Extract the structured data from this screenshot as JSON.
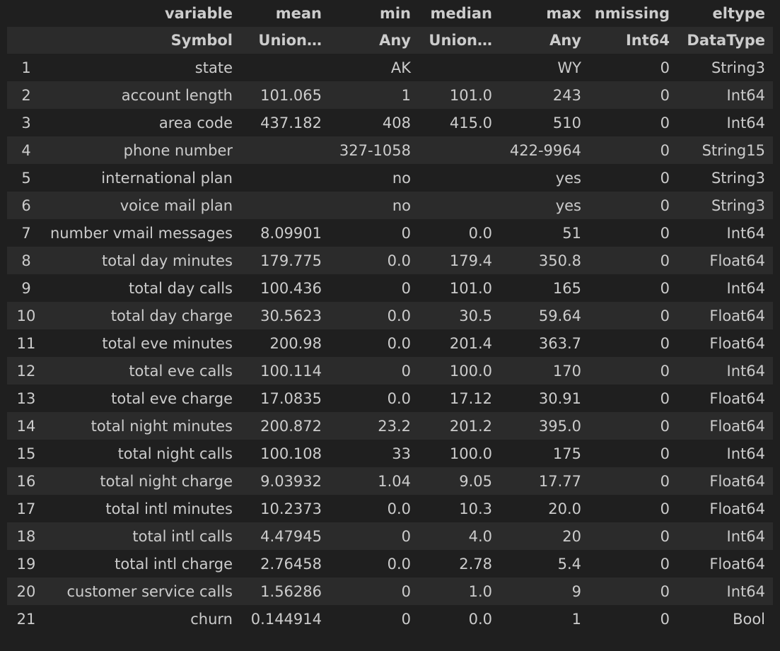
{
  "table": {
    "columns": [
      "variable",
      "mean",
      "min",
      "median",
      "max",
      "nmissing",
      "eltype"
    ],
    "types": [
      "Symbol",
      "Union…",
      "Any",
      "Union…",
      "Any",
      "Int64",
      "DataType"
    ],
    "rows": [
      {
        "idx": "1",
        "variable": "state",
        "mean": "",
        "min": "AK",
        "median": "",
        "max": "WY",
        "nmissing": "0",
        "eltype": "String3"
      },
      {
        "idx": "2",
        "variable": "account length",
        "mean": "101.065",
        "min": "1",
        "median": "101.0",
        "max": "243",
        "nmissing": "0",
        "eltype": "Int64"
      },
      {
        "idx": "3",
        "variable": "area code",
        "mean": "437.182",
        "min": "408",
        "median": "415.0",
        "max": "510",
        "nmissing": "0",
        "eltype": "Int64"
      },
      {
        "idx": "4",
        "variable": "phone number",
        "mean": "",
        "min": "327-1058",
        "median": "",
        "max": "422-9964",
        "nmissing": "0",
        "eltype": "String15"
      },
      {
        "idx": "5",
        "variable": "international plan",
        "mean": "",
        "min": "no",
        "median": "",
        "max": "yes",
        "nmissing": "0",
        "eltype": "String3"
      },
      {
        "idx": "6",
        "variable": "voice mail plan",
        "mean": "",
        "min": "no",
        "median": "",
        "max": "yes",
        "nmissing": "0",
        "eltype": "String3"
      },
      {
        "idx": "7",
        "variable": "number vmail messages",
        "mean": "8.09901",
        "min": "0",
        "median": "0.0",
        "max": "51",
        "nmissing": "0",
        "eltype": "Int64"
      },
      {
        "idx": "8",
        "variable": "total day minutes",
        "mean": "179.775",
        "min": "0.0",
        "median": "179.4",
        "max": "350.8",
        "nmissing": "0",
        "eltype": "Float64"
      },
      {
        "idx": "9",
        "variable": "total day calls",
        "mean": "100.436",
        "min": "0",
        "median": "101.0",
        "max": "165",
        "nmissing": "0",
        "eltype": "Int64"
      },
      {
        "idx": "10",
        "variable": "total day charge",
        "mean": "30.5623",
        "min": "0.0",
        "median": "30.5",
        "max": "59.64",
        "nmissing": "0",
        "eltype": "Float64"
      },
      {
        "idx": "11",
        "variable": "total eve minutes",
        "mean": "200.98",
        "min": "0.0",
        "median": "201.4",
        "max": "363.7",
        "nmissing": "0",
        "eltype": "Float64"
      },
      {
        "idx": "12",
        "variable": "total eve calls",
        "mean": "100.114",
        "min": "0",
        "median": "100.0",
        "max": "170",
        "nmissing": "0",
        "eltype": "Int64"
      },
      {
        "idx": "13",
        "variable": "total eve charge",
        "mean": "17.0835",
        "min": "0.0",
        "median": "17.12",
        "max": "30.91",
        "nmissing": "0",
        "eltype": "Float64"
      },
      {
        "idx": "14",
        "variable": "total night minutes",
        "mean": "200.872",
        "min": "23.2",
        "median": "201.2",
        "max": "395.0",
        "nmissing": "0",
        "eltype": "Float64"
      },
      {
        "idx": "15",
        "variable": "total night calls",
        "mean": "100.108",
        "min": "33",
        "median": "100.0",
        "max": "175",
        "nmissing": "0",
        "eltype": "Int64"
      },
      {
        "idx": "16",
        "variable": "total night charge",
        "mean": "9.03932",
        "min": "1.04",
        "median": "9.05",
        "max": "17.77",
        "nmissing": "0",
        "eltype": "Float64"
      },
      {
        "idx": "17",
        "variable": "total intl minutes",
        "mean": "10.2373",
        "min": "0.0",
        "median": "10.3",
        "max": "20.0",
        "nmissing": "0",
        "eltype": "Float64"
      },
      {
        "idx": "18",
        "variable": "total intl calls",
        "mean": "4.47945",
        "min": "0",
        "median": "4.0",
        "max": "20",
        "nmissing": "0",
        "eltype": "Int64"
      },
      {
        "idx": "19",
        "variable": "total intl charge",
        "mean": "2.76458",
        "min": "0.0",
        "median": "2.78",
        "max": "5.4",
        "nmissing": "0",
        "eltype": "Float64"
      },
      {
        "idx": "20",
        "variable": "customer service calls",
        "mean": "1.56286",
        "min": "0",
        "median": "1.0",
        "max": "9",
        "nmissing": "0",
        "eltype": "Int64"
      },
      {
        "idx": "21",
        "variable": "churn",
        "mean": "0.144914",
        "min": "0",
        "median": "0.0",
        "max": "1",
        "nmissing": "0",
        "eltype": "Bool"
      }
    ]
  },
  "colors": {
    "background": "#1f1f1f",
    "row_shade": "#2b2b2b",
    "text": "#cccccc"
  }
}
